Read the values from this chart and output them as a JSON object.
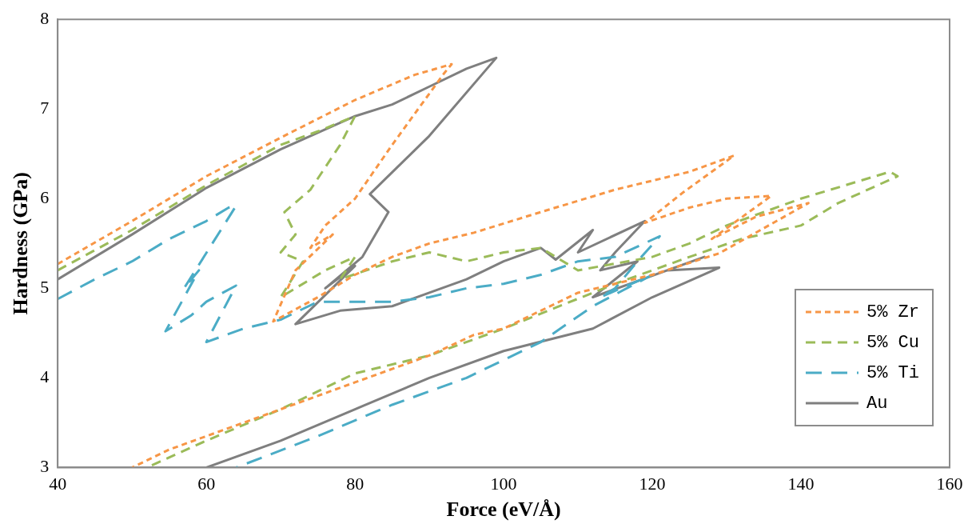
{
  "chart_data": {
    "type": "line",
    "xlabel": "Force (eV/Å)",
    "ylabel": "Hardness (GPa)",
    "xlim": [
      40,
      160
    ],
    "xticks": [
      40,
      60,
      80,
      100,
      120,
      140,
      160
    ],
    "ylim": [
      3,
      8
    ],
    "yticks": [
      3,
      4,
      5,
      6,
      7,
      8
    ],
    "grid": false,
    "legend": "bottom right",
    "marker": "none",
    "series": [
      {
        "name": "5% Zr",
        "color": "#f79646",
        "line_style": "dashed",
        "x": [
          40,
          50,
          60,
          70,
          80,
          88,
          93,
          92,
          85,
          80,
          76,
          74,
          77,
          72,
          69,
          75,
          80,
          85,
          90,
          96,
          105,
          115,
          125,
          131,
          124,
          119,
          125,
          130,
          136,
          128,
          134,
          141,
          129,
          120,
          110,
          100,
          96,
          90,
          80,
          70,
          60,
          55,
          50
        ],
        "values": [
          5.27,
          5.75,
          6.25,
          6.68,
          7.1,
          7.38,
          7.5,
          7.4,
          6.6,
          6.0,
          5.7,
          5.45,
          5.6,
          5.2,
          4.63,
          4.9,
          5.15,
          5.35,
          5.5,
          5.62,
          5.85,
          6.1,
          6.3,
          6.48,
          6.06,
          5.73,
          5.9,
          6.0,
          6.03,
          5.55,
          5.8,
          5.95,
          5.39,
          5.15,
          4.95,
          4.55,
          4.48,
          4.25,
          3.95,
          3.65,
          3.35,
          3.2,
          3.0
        ]
      },
      {
        "name": "5% Cu",
        "color": "#9bbb59",
        "line_style": "dashed",
        "x": [
          40,
          50,
          60,
          70,
          75,
          80,
          78,
          74,
          70.5,
          72,
          70,
          73,
          70,
          76,
          80,
          78,
          85,
          90,
          95,
          100,
          105,
          110,
          120,
          125,
          130,
          140,
          152,
          153,
          145,
          140,
          132,
          125,
          115,
          100,
          90,
          80,
          70,
          60,
          52
        ],
        "values": [
          5.2,
          5.65,
          6.15,
          6.6,
          6.75,
          6.92,
          6.6,
          6.1,
          5.85,
          5.6,
          5.4,
          5.3,
          4.9,
          5.2,
          5.35,
          5.1,
          5.3,
          5.4,
          5.3,
          5.4,
          5.45,
          5.2,
          5.35,
          5.5,
          5.7,
          6.0,
          6.3,
          6.25,
          5.95,
          5.7,
          5.55,
          5.35,
          5.05,
          4.55,
          4.25,
          4.05,
          3.65,
          3.3,
          3.0
        ]
      },
      {
        "name": "5% Ti",
        "color": "#4bacc6",
        "line_style": "dashed",
        "x": [
          40,
          45,
          50,
          55,
          60,
          63,
          64,
          57,
          59,
          54.5,
          58,
          60,
          64,
          60,
          65,
          70,
          75,
          80,
          85,
          90,
          95,
          100,
          105,
          110,
          115,
          121,
          118,
          115,
          113,
          120,
          112,
          105,
          100,
          95,
          85,
          75,
          64
        ],
        "values": [
          4.88,
          5.1,
          5.3,
          5.55,
          5.75,
          5.9,
          5.92,
          5.0,
          5.2,
          4.52,
          4.7,
          4.85,
          5.03,
          4.4,
          4.55,
          4.65,
          4.85,
          4.85,
          4.85,
          4.9,
          5.0,
          5.05,
          5.15,
          5.3,
          5.35,
          5.58,
          5.3,
          5.0,
          4.9,
          5.15,
          4.8,
          4.4,
          4.2,
          4.0,
          3.7,
          3.35,
          3.0
        ]
      },
      {
        "name": "Au",
        "color": "#7f7f7f",
        "line_style": "solid",
        "x": [
          40,
          50,
          60,
          70,
          80,
          85,
          90,
          95,
          99,
          90,
          82,
          84.5,
          81,
          76,
          80,
          72,
          78,
          85,
          90,
          95,
          100,
          105,
          107,
          112,
          110,
          119,
          115,
          113,
          118,
          112,
          127,
          122,
          129,
          120,
          112,
          100,
          90,
          80,
          70,
          60
        ],
        "values": [
          5.1,
          5.6,
          6.12,
          6.55,
          6.92,
          7.05,
          7.25,
          7.45,
          7.57,
          6.7,
          6.05,
          5.85,
          5.35,
          5.0,
          5.25,
          4.6,
          4.75,
          4.8,
          4.95,
          5.1,
          5.3,
          5.45,
          5.32,
          5.65,
          5.4,
          5.75,
          5.4,
          5.2,
          5.3,
          4.9,
          5.35,
          5.2,
          5.23,
          4.9,
          4.55,
          4.3,
          4.0,
          3.65,
          3.3,
          3.0
        ]
      }
    ]
  }
}
